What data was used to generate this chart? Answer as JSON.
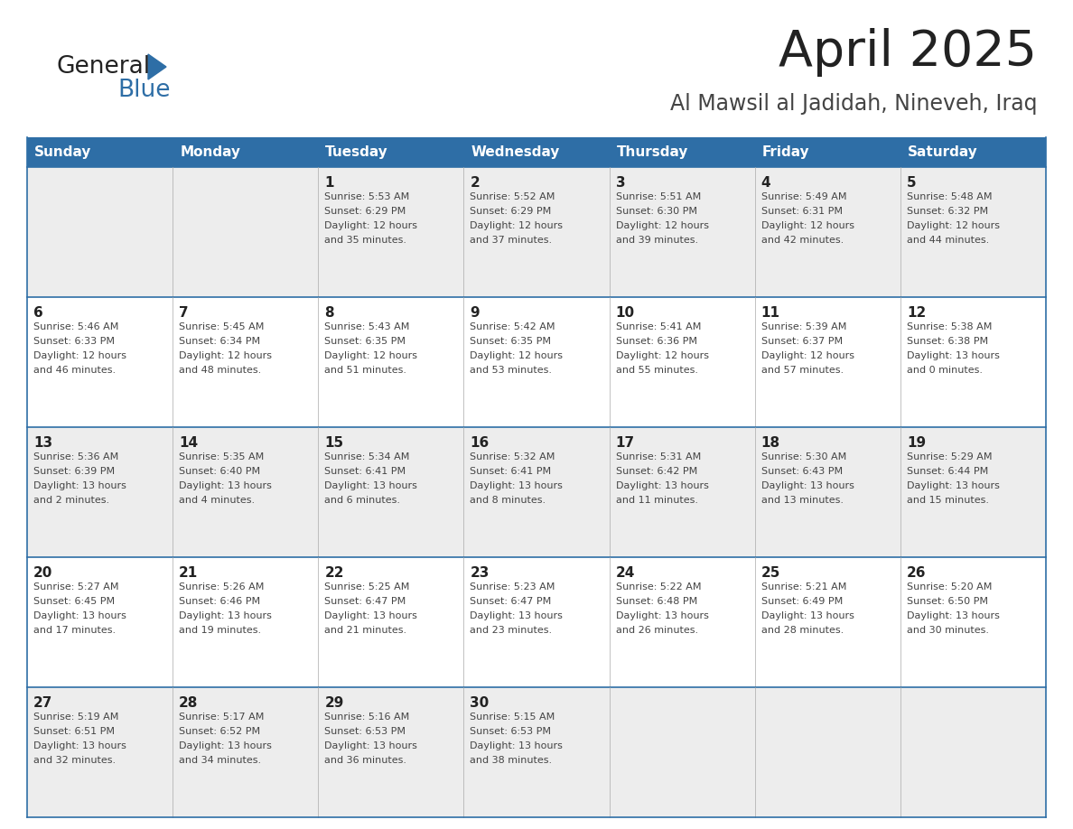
{
  "title": "April 2025",
  "subtitle": "Al Mawsil al Jadidah, Nineveh, Iraq",
  "days_of_week": [
    "Sunday",
    "Monday",
    "Tuesday",
    "Wednesday",
    "Thursday",
    "Friday",
    "Saturday"
  ],
  "header_bg": "#2E6EA6",
  "header_text": "#FFFFFF",
  "row_bg_odd": "#EDEDED",
  "row_bg_even": "#FFFFFF",
  "cell_border_color": "#AAAAAA",
  "row_border_color": "#2E6EA6",
  "day_number_color": "#222222",
  "text_color": "#444444",
  "title_color": "#222222",
  "subtitle_color": "#444444",
  "logo_general_color": "#222222",
  "logo_blue_color": "#2E6EA6",
  "calendar_data": [
    [
      {
        "day": "",
        "info": ""
      },
      {
        "day": "",
        "info": ""
      },
      {
        "day": "1",
        "info": "Sunrise: 5:53 AM\nSunset: 6:29 PM\nDaylight: 12 hours\nand 35 minutes."
      },
      {
        "day": "2",
        "info": "Sunrise: 5:52 AM\nSunset: 6:29 PM\nDaylight: 12 hours\nand 37 minutes."
      },
      {
        "day": "3",
        "info": "Sunrise: 5:51 AM\nSunset: 6:30 PM\nDaylight: 12 hours\nand 39 minutes."
      },
      {
        "day": "4",
        "info": "Sunrise: 5:49 AM\nSunset: 6:31 PM\nDaylight: 12 hours\nand 42 minutes."
      },
      {
        "day": "5",
        "info": "Sunrise: 5:48 AM\nSunset: 6:32 PM\nDaylight: 12 hours\nand 44 minutes."
      }
    ],
    [
      {
        "day": "6",
        "info": "Sunrise: 5:46 AM\nSunset: 6:33 PM\nDaylight: 12 hours\nand 46 minutes."
      },
      {
        "day": "7",
        "info": "Sunrise: 5:45 AM\nSunset: 6:34 PM\nDaylight: 12 hours\nand 48 minutes."
      },
      {
        "day": "8",
        "info": "Sunrise: 5:43 AM\nSunset: 6:35 PM\nDaylight: 12 hours\nand 51 minutes."
      },
      {
        "day": "9",
        "info": "Sunrise: 5:42 AM\nSunset: 6:35 PM\nDaylight: 12 hours\nand 53 minutes."
      },
      {
        "day": "10",
        "info": "Sunrise: 5:41 AM\nSunset: 6:36 PM\nDaylight: 12 hours\nand 55 minutes."
      },
      {
        "day": "11",
        "info": "Sunrise: 5:39 AM\nSunset: 6:37 PM\nDaylight: 12 hours\nand 57 minutes."
      },
      {
        "day": "12",
        "info": "Sunrise: 5:38 AM\nSunset: 6:38 PM\nDaylight: 13 hours\nand 0 minutes."
      }
    ],
    [
      {
        "day": "13",
        "info": "Sunrise: 5:36 AM\nSunset: 6:39 PM\nDaylight: 13 hours\nand 2 minutes."
      },
      {
        "day": "14",
        "info": "Sunrise: 5:35 AM\nSunset: 6:40 PM\nDaylight: 13 hours\nand 4 minutes."
      },
      {
        "day": "15",
        "info": "Sunrise: 5:34 AM\nSunset: 6:41 PM\nDaylight: 13 hours\nand 6 minutes."
      },
      {
        "day": "16",
        "info": "Sunrise: 5:32 AM\nSunset: 6:41 PM\nDaylight: 13 hours\nand 8 minutes."
      },
      {
        "day": "17",
        "info": "Sunrise: 5:31 AM\nSunset: 6:42 PM\nDaylight: 13 hours\nand 11 minutes."
      },
      {
        "day": "18",
        "info": "Sunrise: 5:30 AM\nSunset: 6:43 PM\nDaylight: 13 hours\nand 13 minutes."
      },
      {
        "day": "19",
        "info": "Sunrise: 5:29 AM\nSunset: 6:44 PM\nDaylight: 13 hours\nand 15 minutes."
      }
    ],
    [
      {
        "day": "20",
        "info": "Sunrise: 5:27 AM\nSunset: 6:45 PM\nDaylight: 13 hours\nand 17 minutes."
      },
      {
        "day": "21",
        "info": "Sunrise: 5:26 AM\nSunset: 6:46 PM\nDaylight: 13 hours\nand 19 minutes."
      },
      {
        "day": "22",
        "info": "Sunrise: 5:25 AM\nSunset: 6:47 PM\nDaylight: 13 hours\nand 21 minutes."
      },
      {
        "day": "23",
        "info": "Sunrise: 5:23 AM\nSunset: 6:47 PM\nDaylight: 13 hours\nand 23 minutes."
      },
      {
        "day": "24",
        "info": "Sunrise: 5:22 AM\nSunset: 6:48 PM\nDaylight: 13 hours\nand 26 minutes."
      },
      {
        "day": "25",
        "info": "Sunrise: 5:21 AM\nSunset: 6:49 PM\nDaylight: 13 hours\nand 28 minutes."
      },
      {
        "day": "26",
        "info": "Sunrise: 5:20 AM\nSunset: 6:50 PM\nDaylight: 13 hours\nand 30 minutes."
      }
    ],
    [
      {
        "day": "27",
        "info": "Sunrise: 5:19 AM\nSunset: 6:51 PM\nDaylight: 13 hours\nand 32 minutes."
      },
      {
        "day": "28",
        "info": "Sunrise: 5:17 AM\nSunset: 6:52 PM\nDaylight: 13 hours\nand 34 minutes."
      },
      {
        "day": "29",
        "info": "Sunrise: 5:16 AM\nSunset: 6:53 PM\nDaylight: 13 hours\nand 36 minutes."
      },
      {
        "day": "30",
        "info": "Sunrise: 5:15 AM\nSunset: 6:53 PM\nDaylight: 13 hours\nand 38 minutes."
      },
      {
        "day": "",
        "info": ""
      },
      {
        "day": "",
        "info": ""
      },
      {
        "day": "",
        "info": ""
      }
    ]
  ]
}
